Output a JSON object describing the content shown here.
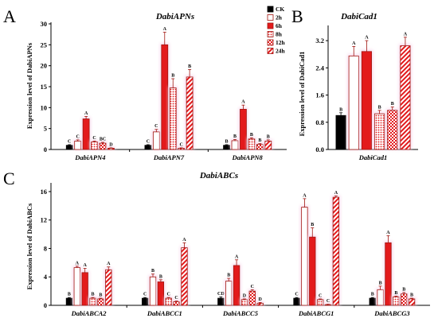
{
  "panel_letters": {
    "a": "A",
    "b": "B",
    "c": "C"
  },
  "colors": {
    "halo": "#f7d6ea",
    "bar_red": "#e31a1c",
    "bar_dark_red": "#a11510",
    "axis": "#000000"
  },
  "series_styles": [
    {
      "name": "CK",
      "fill": "#000000",
      "pattern": "solid"
    },
    {
      "name": "2h",
      "fill": "#ffffff",
      "pattern": "hollow"
    },
    {
      "name": "6h",
      "fill": "#e31a1c",
      "pattern": "solid"
    },
    {
      "name": "8h",
      "fill": "#e31a1c",
      "pattern": "dots"
    },
    {
      "name": "12h",
      "fill": "#e31a1c",
      "pattern": "checker"
    },
    {
      "name": "24h",
      "fill": "#e31a1c",
      "pattern": "diagonal"
    }
  ],
  "chart_data": [
    {
      "panel": "A",
      "type": "bar",
      "title": "DabiAPNs",
      "ylabel": "Expression level of DabiAPNs",
      "ylim": [
        0,
        30
      ],
      "yticks": [
        "0",
        "5",
        "10",
        "15",
        "20",
        "25",
        "30"
      ],
      "categories": [
        "DabiAPN4",
        "DabiAPN7",
        "DabiAPN8"
      ],
      "legend": {
        "placement": "top-right",
        "entries": [
          "CK",
          "2h",
          "6h",
          "8h",
          "12h",
          "24h"
        ]
      },
      "series": [
        {
          "name": "CK",
          "values": [
            1.0,
            1.0,
            1.0
          ],
          "errors": [
            0.15,
            0.15,
            0.15
          ],
          "labels": [
            "C",
            "C",
            "B"
          ]
        },
        {
          "name": "2h",
          "values": [
            2.0,
            4.2,
            2.1
          ],
          "errors": [
            0.3,
            0.6,
            0.3
          ],
          "labels": [
            "C",
            "C",
            "B"
          ]
        },
        {
          "name": "6h",
          "values": [
            7.3,
            25.0,
            9.6
          ],
          "errors": [
            0.6,
            3.0,
            1.0
          ],
          "labels": [
            "A",
            "A",
            "A"
          ]
        },
        {
          "name": "8h",
          "values": [
            1.8,
            14.7,
            2.5
          ],
          "errors": [
            0.2,
            2.2,
            0.3
          ],
          "labels": [
            "C",
            "B",
            "B"
          ]
        },
        {
          "name": "12h",
          "values": [
            1.5,
            0.3,
            1.2
          ],
          "errors": [
            0.2,
            0.1,
            0.2
          ],
          "labels": [
            "BC",
            "C",
            "B"
          ]
        },
        {
          "name": "24h",
          "values": [
            0.3,
            17.3,
            2.0
          ],
          "errors": [
            0.1,
            1.8,
            0.3
          ],
          "labels": [
            "D",
            "B",
            "B"
          ]
        }
      ]
    },
    {
      "panel": "B",
      "type": "bar",
      "title": "DabiCad1",
      "ylabel": "Expression level of DabiCad1",
      "ylim": [
        0,
        3.6
      ],
      "yticks": [
        "0.0",
        "0.8",
        "1.6",
        "2.4",
        "3.2"
      ],
      "categories": [
        "DabiCad1"
      ],
      "series": [
        {
          "name": "CK",
          "values": [
            1.0
          ],
          "errors": [
            0.08
          ],
          "labels": [
            "B"
          ]
        },
        {
          "name": "2h",
          "values": [
            2.75
          ],
          "errors": [
            0.28
          ],
          "labels": [
            "A"
          ]
        },
        {
          "name": "6h",
          "values": [
            2.88
          ],
          "errors": [
            0.32
          ],
          "labels": [
            "A"
          ]
        },
        {
          "name": "8h",
          "values": [
            1.05
          ],
          "errors": [
            0.1
          ],
          "labels": [
            "B"
          ]
        },
        {
          "name": "12h",
          "values": [
            1.15
          ],
          "errors": [
            0.1
          ],
          "labels": [
            "B"
          ]
        },
        {
          "name": "24h",
          "values": [
            3.05
          ],
          "errors": [
            0.25
          ],
          "labels": [
            "A"
          ]
        }
      ]
    },
    {
      "panel": "C",
      "type": "bar",
      "title": "DabiABCs",
      "ylabel": "Expression level of DabiABCs",
      "ylim": [
        0,
        17
      ],
      "yticks": [
        "0",
        "4",
        "8",
        "12",
        "16"
      ],
      "categories": [
        "DabiABCA2",
        "DabiABCC1",
        "DabiABCC5",
        "DabiABCG1",
        "DabiABCG3"
      ],
      "series": [
        {
          "name": "CK",
          "values": [
            1.0,
            1.0,
            1.0,
            1.0,
            1.0
          ],
          "errors": [
            0.1,
            0.1,
            0.2,
            0.1,
            0.1
          ],
          "labels": [
            "B",
            "C",
            "CD",
            "C",
            "B"
          ]
        },
        {
          "name": "2h",
          "values": [
            5.3,
            4.0,
            3.4,
            13.8,
            2.2
          ],
          "errors": [
            0.2,
            0.4,
            0.4,
            1.2,
            0.5
          ],
          "labels": [
            "A",
            "B",
            "B",
            "A",
            "B"
          ]
        },
        {
          "name": "6h",
          "values": [
            4.6,
            3.3,
            5.6,
            9.6,
            8.8
          ],
          "errors": [
            0.6,
            0.3,
            0.8,
            1.3,
            1.0
          ],
          "labels": [
            "A",
            "B",
            "A",
            "B",
            "A"
          ]
        },
        {
          "name": "8h",
          "values": [
            1.0,
            1.0,
            0.8,
            0.8,
            1.2
          ],
          "errors": [
            0.1,
            0.1,
            0.1,
            0.1,
            0.1
          ],
          "labels": [
            "B",
            "C",
            "D",
            "C",
            "B"
          ]
        },
        {
          "name": "12h",
          "values": [
            0.9,
            0.5,
            2.0,
            0.1,
            1.6
          ],
          "errors": [
            0.1,
            0.1,
            0.2,
            0.05,
            0.2
          ],
          "labels": [
            "B",
            "C",
            "C",
            "C",
            "B"
          ]
        },
        {
          "name": "24h",
          "values": [
            5.0,
            8.1,
            0.3,
            15.2,
            0.9
          ],
          "errors": [
            0.4,
            0.7,
            0.1,
            0.2,
            0.1
          ],
          "labels": [
            "A",
            "A",
            "D",
            "A",
            "B"
          ]
        }
      ]
    }
  ]
}
